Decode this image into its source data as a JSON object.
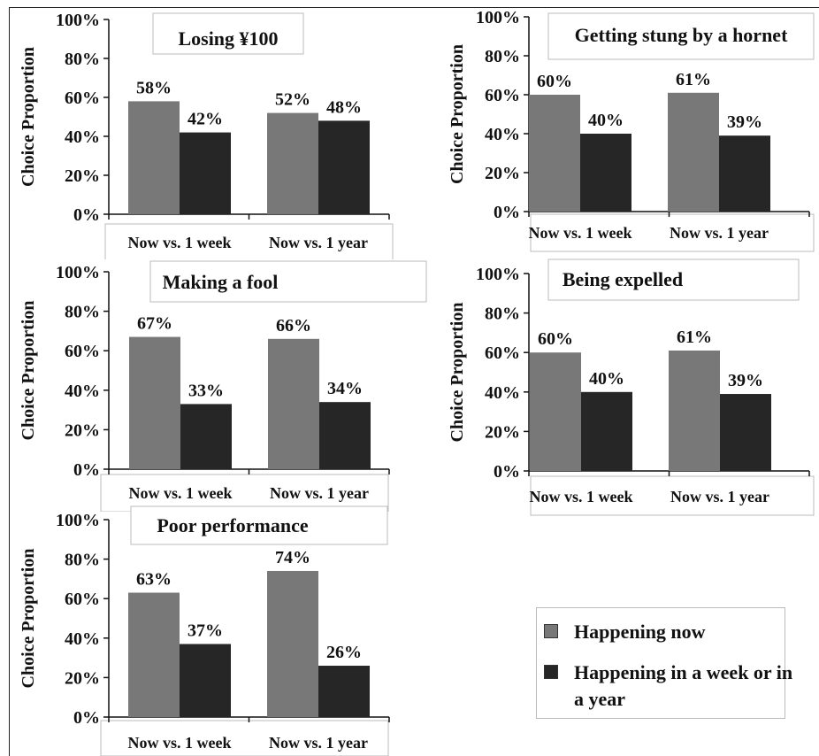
{
  "legend": {
    "items": [
      {
        "label": "Happening now",
        "color": "#787878"
      },
      {
        "label": "Happening in a week or in a year",
        "color": "#262626"
      }
    ]
  },
  "chart_data": [
    {
      "type": "bar",
      "title": "Losing ¥100",
      "ylabel": "Choice Proportion",
      "ylim": [
        0,
        100
      ],
      "yticks": [
        "0%",
        "20%",
        "40%",
        "60%",
        "80%",
        "100%"
      ],
      "categories": [
        "Now vs. 1 week",
        "Now vs. 1 year"
      ],
      "series": [
        {
          "name": "Happening now",
          "values": [
            58,
            52
          ],
          "labels": [
            "58%",
            "52%"
          ],
          "color": "#787878"
        },
        {
          "name": "Happening in a week or in a year",
          "values": [
            42,
            48
          ],
          "labels": [
            "42%",
            "48%"
          ],
          "color": "#262626"
        }
      ]
    },
    {
      "type": "bar",
      "title": "Getting stung by a hornet",
      "ylabel": "Choice Proportion",
      "ylim": [
        0,
        100
      ],
      "yticks": [
        "0%",
        "20%",
        "40%",
        "60%",
        "80%",
        "100%"
      ],
      "categories": [
        "Now vs. 1 week",
        "Now vs. 1 year"
      ],
      "series": [
        {
          "name": "Happening now",
          "values": [
            60,
            61
          ],
          "labels": [
            "60%",
            "61%"
          ],
          "color": "#787878"
        },
        {
          "name": "Happening in a week or in a year",
          "values": [
            40,
            39
          ],
          "labels": [
            "40%",
            "39%"
          ],
          "color": "#262626"
        }
      ]
    },
    {
      "type": "bar",
      "title": "Making a fool",
      "ylabel": "Choice Proportion",
      "ylim": [
        0,
        100
      ],
      "yticks": [
        "0%",
        "20%",
        "40%",
        "60%",
        "80%",
        "100%"
      ],
      "categories": [
        "Now vs. 1 week",
        "Now vs. 1 year"
      ],
      "series": [
        {
          "name": "Happening now",
          "values": [
            67,
            66
          ],
          "labels": [
            "67%",
            "66%"
          ],
          "color": "#787878"
        },
        {
          "name": "Happening in a week or in a year",
          "values": [
            33,
            34
          ],
          "labels": [
            "33%",
            "34%"
          ],
          "color": "#262626"
        }
      ]
    },
    {
      "type": "bar",
      "title": "Being expelled",
      "ylabel": "Choice Proportion",
      "ylim": [
        0,
        100
      ],
      "yticks": [
        "0%",
        "20%",
        "40%",
        "60%",
        "80%",
        "100%"
      ],
      "categories": [
        "Now vs. 1 week",
        "Now vs. 1 year"
      ],
      "series": [
        {
          "name": "Happening now",
          "values": [
            60,
            61
          ],
          "labels": [
            "60%",
            "61%"
          ],
          "color": "#787878"
        },
        {
          "name": "Happening in a week or in a year",
          "values": [
            40,
            39
          ],
          "labels": [
            "40%",
            "39%"
          ],
          "color": "#262626"
        }
      ]
    },
    {
      "type": "bar",
      "title": "Poor performance",
      "ylabel": "Choice Proportion",
      "ylim": [
        0,
        100
      ],
      "yticks": [
        "0%",
        "20%",
        "40%",
        "60%",
        "80%",
        "100%"
      ],
      "categories": [
        "Now vs. 1 week",
        "Now vs. 1 year"
      ],
      "series": [
        {
          "name": "Happening now",
          "values": [
            63,
            74
          ],
          "labels": [
            "63%",
            "74%"
          ],
          "color": "#787878"
        },
        {
          "name": "Happening in a week or in a year",
          "values": [
            37,
            26
          ],
          "labels": [
            "37%",
            "26%"
          ],
          "color": "#262626"
        }
      ]
    }
  ]
}
